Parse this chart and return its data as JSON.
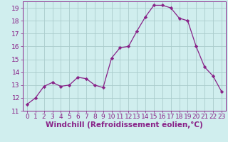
{
  "x": [
    0,
    1,
    2,
    3,
    4,
    5,
    6,
    7,
    8,
    9,
    10,
    11,
    12,
    13,
    14,
    15,
    16,
    17,
    18,
    19,
    20,
    21,
    22,
    23
  ],
  "y": [
    11.5,
    12.0,
    12.9,
    13.2,
    12.9,
    13.0,
    13.6,
    13.5,
    13.0,
    12.8,
    15.1,
    15.9,
    16.0,
    17.2,
    18.3,
    19.2,
    19.2,
    19.0,
    18.2,
    18.0,
    16.0,
    14.4,
    13.7,
    12.5
  ],
  "line_color": "#882288",
  "marker_color": "#882288",
  "bg_color": "#d0eeee",
  "grid_color": "#aacccc",
  "xlabel": "Windchill (Refroidissement éolien,°C)",
  "ylim": [
    11,
    19.5
  ],
  "xlim": [
    -0.5,
    23.5
  ],
  "yticks": [
    11,
    12,
    13,
    14,
    15,
    16,
    17,
    18,
    19
  ],
  "xticks": [
    0,
    1,
    2,
    3,
    4,
    5,
    6,
    7,
    8,
    9,
    10,
    11,
    12,
    13,
    14,
    15,
    16,
    17,
    18,
    19,
    20,
    21,
    22,
    23
  ],
  "tick_label_fontsize": 6.5,
  "xlabel_fontsize": 7.5
}
